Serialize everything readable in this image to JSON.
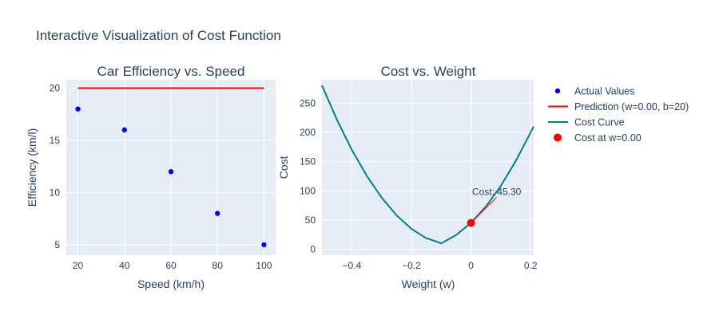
{
  "title": "Interactive Visualization of Cost Function",
  "colors": {
    "plot_bg": "#E5ECF6",
    "grid": "#ffffff",
    "text": "#2a3f5f",
    "actual": "#0000ff",
    "prediction": "#ff0000",
    "cost_curve": "#008080",
    "cost_point": "#ff0000"
  },
  "legend": {
    "placement": "right",
    "items": [
      {
        "label": "Actual Values",
        "symbol": "marker",
        "color": "#0000ff"
      },
      {
        "label": "Prediction (w=0.00, b=20)",
        "symbol": "line",
        "color": "#ff0000"
      },
      {
        "label": "Cost Curve",
        "symbol": "line",
        "color": "#008080"
      },
      {
        "label": "Cost at w=0.00",
        "symbol": "marker-large",
        "color": "#ff0000"
      }
    ]
  },
  "chart_data": [
    {
      "type": "scatter",
      "title": "Car Efficiency vs. Speed",
      "xlabel": "Speed (km/h)",
      "ylabel": "Efficiency (km/l)",
      "xlim": [
        15,
        105
      ],
      "ylim": [
        4,
        20.8
      ],
      "xticks": [
        20,
        40,
        60,
        80,
        100
      ],
      "yticks": [
        5,
        10,
        15,
        20
      ],
      "grid": true,
      "series": [
        {
          "name": "Actual Values",
          "mode": "markers",
          "color": "#0000ff",
          "x": [
            20,
            40,
            60,
            80,
            100
          ],
          "y": [
            18,
            16,
            12,
            8,
            5
          ]
        },
        {
          "name": "Prediction (w=0.00, b=20)",
          "mode": "line",
          "color": "#ff0000",
          "x": [
            20,
            100
          ],
          "y": [
            20,
            20
          ]
        }
      ]
    },
    {
      "type": "line",
      "title": "Cost vs. Weight",
      "xlabel": "Weight (w)",
      "ylabel": "Cost",
      "xlim": [
        -0.5,
        0.21
      ],
      "ylim": [
        -10,
        290
      ],
      "xticks": [
        -0.4,
        -0.2,
        0,
        0.2
      ],
      "xtick_labels": [
        "−0.4",
        "−0.2",
        "0",
        "0.2"
      ],
      "yticks": [
        0,
        50,
        100,
        150,
        200,
        250
      ],
      "grid": true,
      "series": [
        {
          "name": "Cost Curve",
          "mode": "line",
          "color": "#008080",
          "x": [
            -0.5,
            -0.45,
            -0.4,
            -0.35,
            -0.3,
            -0.25,
            -0.2,
            -0.15,
            -0.14,
            -0.1,
            -0.05,
            0,
            0.05,
            0.1,
            0.15,
            0.21
          ],
          "y": [
            280.5,
            221.9,
            170.4,
            126,
            88.6,
            58.3,
            35.1,
            18.9,
            17.5,
            10.3,
            24.4,
            45.3,
            73.4,
            108.6,
            151,
            210
          ]
        },
        {
          "name": "Cost at w=0.00",
          "mode": "markers",
          "color": "#ff0000",
          "x": [
            0
          ],
          "y": [
            45.3
          ]
        }
      ],
      "annotations": [
        {
          "text": "Cost: 45.30",
          "x": 0,
          "y": 45.3
        }
      ]
    }
  ]
}
